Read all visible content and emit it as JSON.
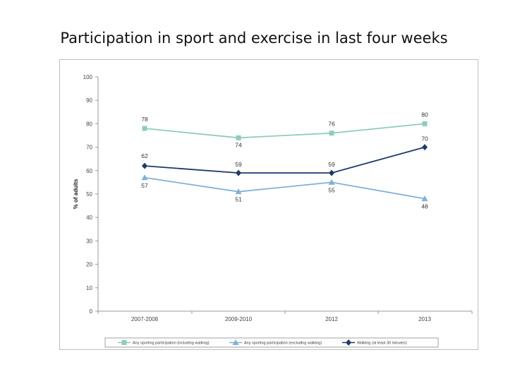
{
  "slide": {
    "title": "Participation in sport and exercise in last four weeks"
  },
  "chart_data": {
    "type": "line",
    "title": "",
    "xlabel": "",
    "ylabel": "% of adults",
    "categories": [
      "2007-2008",
      "2009-2010",
      "2012",
      "2013"
    ],
    "ylim": [
      0,
      100
    ],
    "yticks": [
      0,
      10,
      20,
      30,
      40,
      50,
      60,
      70,
      80,
      90,
      100
    ],
    "grid": false,
    "legend_position": "bottom",
    "series": [
      {
        "name": "Any sporting participation (including walking)",
        "values": [
          78,
          74,
          76,
          80
        ],
        "color": "#8fcdb8",
        "marker": "square"
      },
      {
        "name": "Any sporting participation (excluding walking)",
        "values": [
          57,
          51,
          55,
          48
        ],
        "color": "#7fb1d9",
        "marker": "triangle"
      },
      {
        "name": "Walking (at least 30 minutes)",
        "values": [
          62,
          59,
          59,
          70
        ],
        "color": "#1f3a68",
        "marker": "diamond"
      }
    ]
  }
}
